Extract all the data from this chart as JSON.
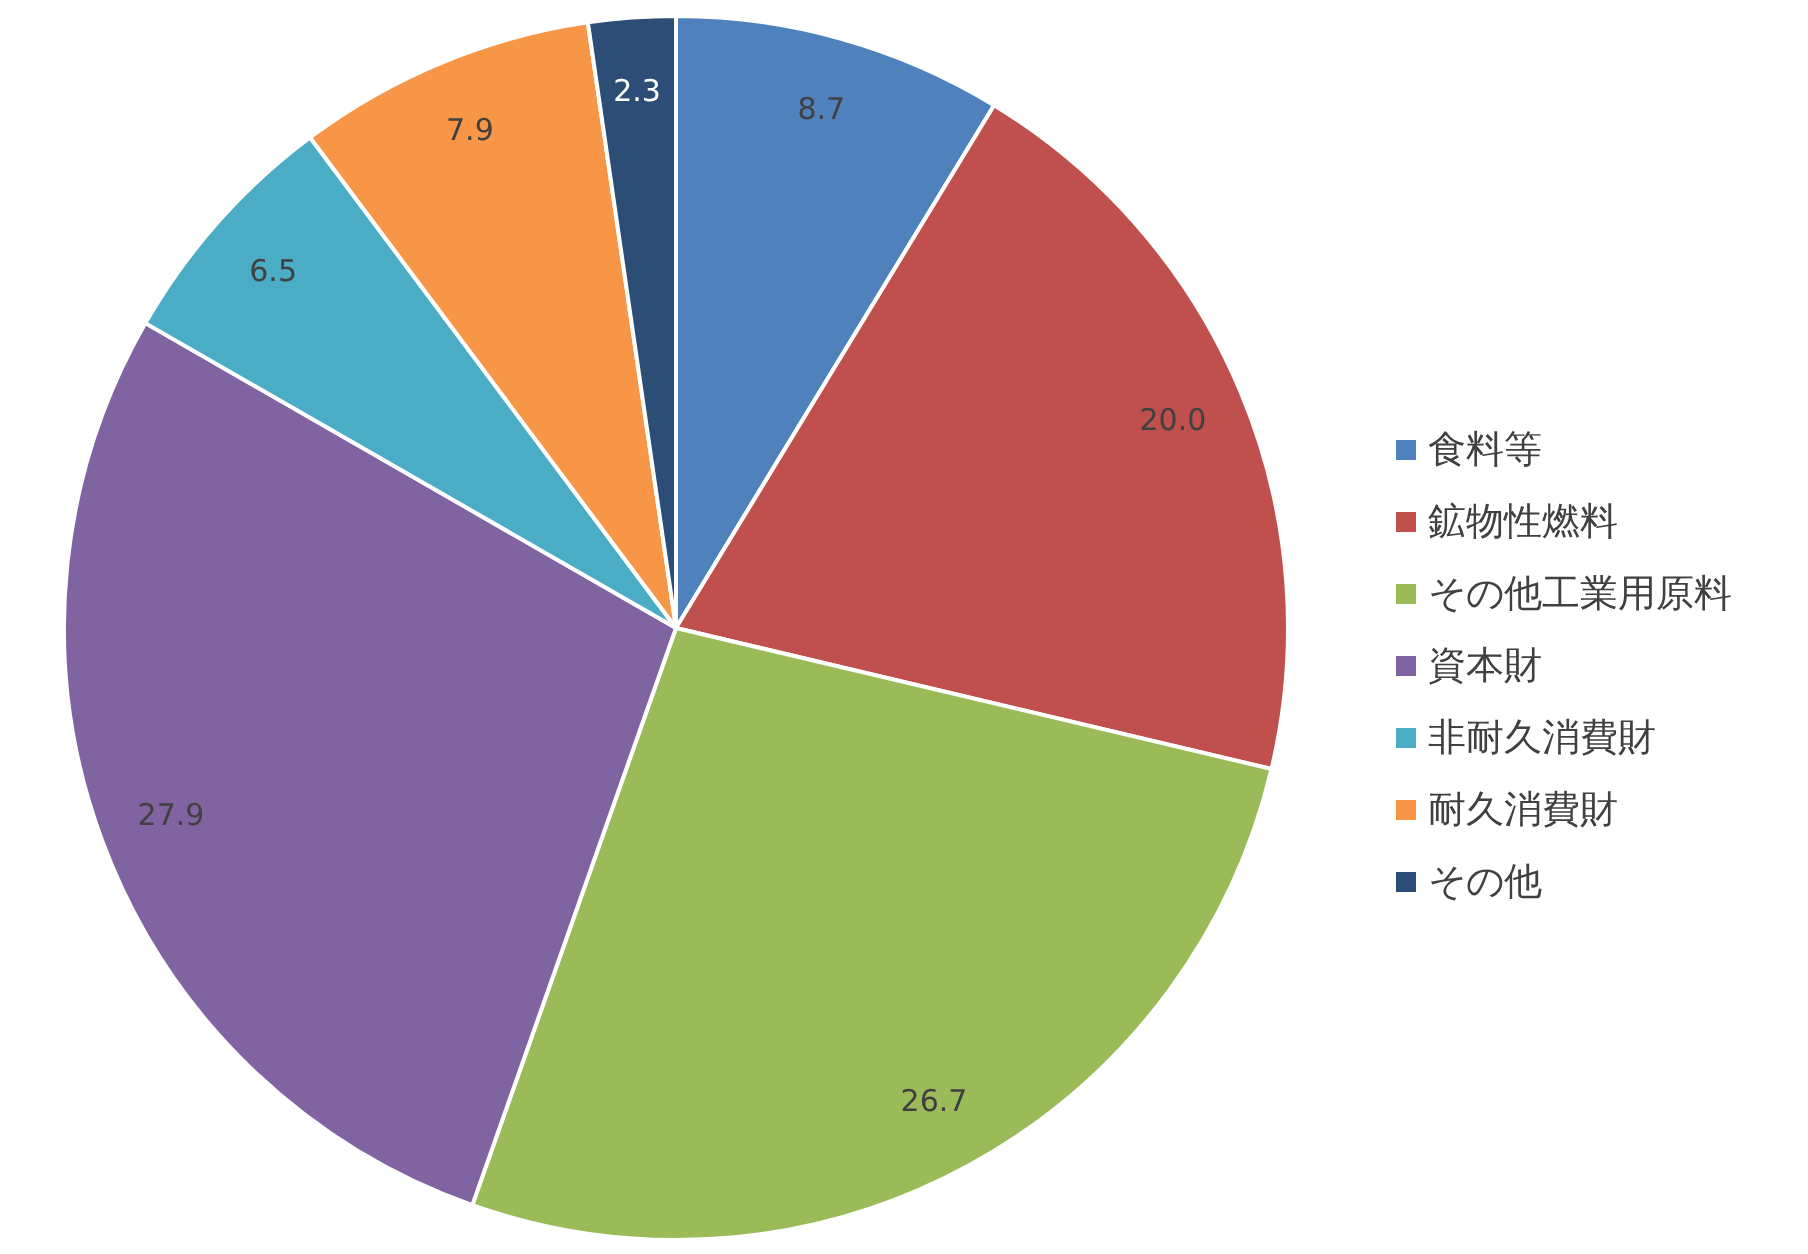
{
  "chart_data": {
    "type": "pie",
    "categories": [
      "食料等",
      "鉱物性燃料",
      "その他工業用原料",
      "資本財",
      "非耐久消費財",
      "耐久消費財",
      "その他"
    ],
    "values": [
      8.7,
      20.0,
      26.7,
      27.9,
      6.5,
      7.9,
      2.3
    ],
    "value_labels": [
      "8.7",
      "20.0",
      "26.7",
      "27.9",
      "6.5",
      "7.9",
      "2.3"
    ],
    "colors": [
      "#4f81bd",
      "#c0504d",
      "#9bbb59",
      "#8064a2",
      "#4bacc6",
      "#f79646",
      "#2c4d75"
    ],
    "legend": "right"
  }
}
